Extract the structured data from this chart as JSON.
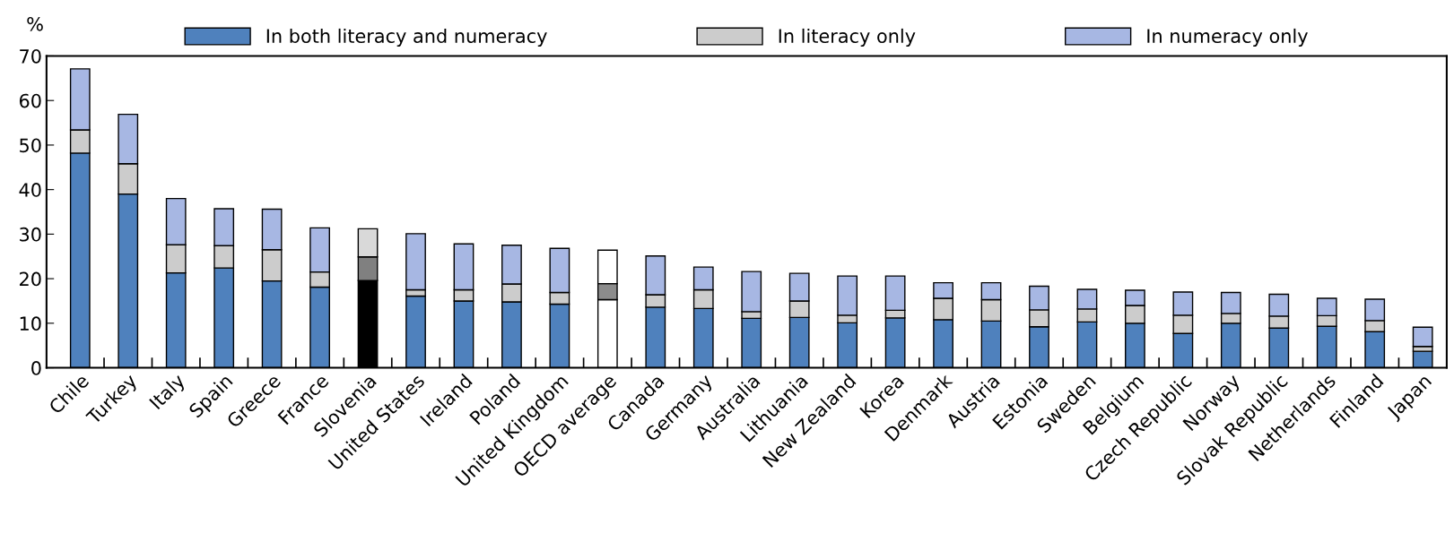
{
  "chart_data": {
    "type": "bar",
    "stacked": true,
    "ylabel": "%",
    "legend": "top",
    "grid": false,
    "categories": [
      "Chile",
      "Turkey",
      "Italy",
      "Spain",
      "Greece",
      "France",
      "Slovenia",
      "United States",
      "Ireland",
      "Poland",
      "United Kingdom",
      "OECD average",
      "Canada",
      "Germany",
      "Australia",
      "Lithuania",
      "New Zealand",
      "Korea",
      "Denmark",
      "Austria",
      "Estonia",
      "Sweden",
      "Belgium",
      "Czech Republic",
      "Norway",
      "Slovak Republic",
      "Netherlands",
      "Finland",
      "Japan"
    ],
    "series": [
      {
        "name": "In both literacy and numeracy",
        "color": "#4f81bd",
        "colors": [
          "#4f81bd",
          "#4f81bd",
          "#4f81bd",
          "#4f81bd",
          "#4f81bd",
          "#4f81bd",
          "#000000",
          "#4f81bd",
          "#4f81bd",
          "#4f81bd",
          "#4f81bd",
          "#ffffff",
          "#4f81bd",
          "#4f81bd",
          "#4f81bd",
          "#4f81bd",
          "#4f81bd",
          "#4f81bd",
          "#4f81bd",
          "#4f81bd",
          "#4f81bd",
          "#4f81bd",
          "#4f81bd",
          "#4f81bd",
          "#4f81bd",
          "#4f81bd",
          "#4f81bd",
          "#4f81bd",
          "#4f81bd"
        ],
        "values": [
          48.2,
          39.0,
          21.3,
          22.4,
          19.5,
          18.1,
          19.6,
          16.1,
          15.0,
          14.8,
          14.3,
          15.3,
          13.6,
          13.3,
          11.1,
          11.3,
          10.1,
          11.2,
          10.8,
          10.5,
          9.2,
          10.3,
          10.0,
          7.7,
          10.0,
          8.9,
          9.3,
          8.1,
          3.7
        ]
      },
      {
        "name": "In literacy only",
        "color": "#cccccc",
        "colors": [
          "#cccccc",
          "#cccccc",
          "#cccccc",
          "#cccccc",
          "#cccccc",
          "#cccccc",
          "#808080",
          "#cccccc",
          "#cccccc",
          "#cccccc",
          "#cccccc",
          "#8c8c8c",
          "#cccccc",
          "#cccccc",
          "#cccccc",
          "#cccccc",
          "#cccccc",
          "#cccccc",
          "#cccccc",
          "#cccccc",
          "#cccccc",
          "#cccccc",
          "#cccccc",
          "#cccccc",
          "#cccccc",
          "#cccccc",
          "#cccccc",
          "#cccccc",
          "#cccccc"
        ],
        "values": [
          5.2,
          6.8,
          6.3,
          5.0,
          7.0,
          3.4,
          5.3,
          1.4,
          2.5,
          4.0,
          2.6,
          3.6,
          2.8,
          4.2,
          1.5,
          3.7,
          1.7,
          1.7,
          4.8,
          4.8,
          3.8,
          2.9,
          4.0,
          4.1,
          2.2,
          2.7,
          2.4,
          2.5,
          1.1
        ]
      },
      {
        "name": "In numeracy only",
        "color": "#a7b7e3",
        "colors": [
          "#a7b7e3",
          "#a7b7e3",
          "#a7b7e3",
          "#a7b7e3",
          "#a7b7e3",
          "#a7b7e3",
          "#d9d9d9",
          "#a7b7e3",
          "#a7b7e3",
          "#a7b7e3",
          "#a7b7e3",
          "#ffffff",
          "#a7b7e3",
          "#a7b7e3",
          "#a7b7e3",
          "#a7b7e3",
          "#a7b7e3",
          "#a7b7e3",
          "#a7b7e3",
          "#a7b7e3",
          "#a7b7e3",
          "#a7b7e3",
          "#a7b7e3",
          "#a7b7e3",
          "#a7b7e3",
          "#a7b7e3",
          "#a7b7e3",
          "#a7b7e3",
          "#a7b7e3"
        ],
        "values": [
          13.7,
          11.1,
          10.4,
          8.3,
          9.1,
          9.9,
          6.3,
          12.6,
          10.3,
          8.7,
          9.9,
          7.5,
          8.7,
          5.1,
          9.0,
          6.2,
          8.8,
          7.7,
          3.5,
          3.8,
          5.3,
          4.4,
          3.4,
          5.2,
          4.7,
          4.9,
          3.9,
          4.8,
          4.3
        ]
      }
    ],
    "ylim": [
      0,
      70
    ],
    "yticks": [
      0,
      10,
      20,
      30,
      40,
      50,
      60,
      70
    ]
  }
}
